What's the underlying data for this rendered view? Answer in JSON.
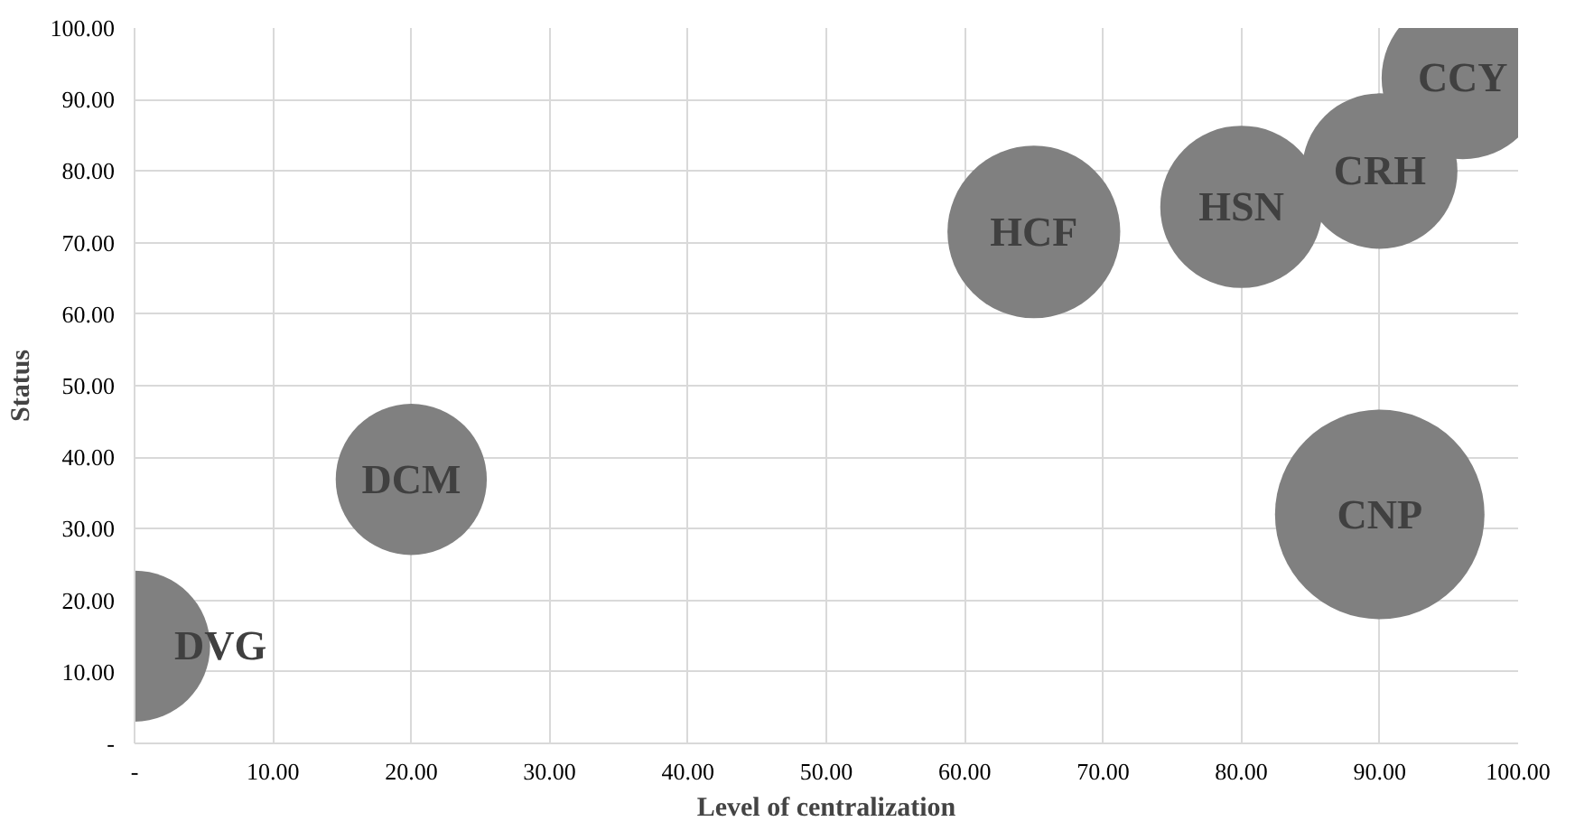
{
  "chart_data": {
    "type": "bubble",
    "xlabel": "Level of centralization",
    "ylabel": "Status",
    "series": [
      {
        "color": "#808080",
        "x": [
          0,
          20,
          65,
          80,
          90,
          96,
          90
        ],
        "values": [
          13.6,
          36.9,
          71.5,
          75,
          80,
          93,
          32
        ],
        "sizes": [
          0.52,
          0.52,
          0.68,
          0.6,
          0.55,
          0.6,
          1
        ]
      }
    ],
    "annotations": [
      {
        "text": "DVG",
        "x": 0,
        "y": 13.6
      },
      {
        "text": "DCM",
        "x": 20,
        "y": 36.9
      },
      {
        "text": "HCF",
        "x": 65,
        "y": 71.5
      },
      {
        "text": "HSN",
        "x": 80,
        "y": 75
      },
      {
        "text": "CRH",
        "x": 90,
        "y": 80
      },
      {
        "text": "CCY",
        "x": 96,
        "y": 93
      },
      {
        "text": "CNP",
        "x": 90,
        "y": 32
      }
    ],
    "xlim": [
      0,
      100
    ],
    "ylim": [
      0,
      100
    ],
    "xticks": [
      {
        "value": 0,
        "label": "-"
      },
      {
        "value": 10,
        "label": "10.00"
      },
      {
        "value": 20,
        "label": "20.00"
      },
      {
        "value": 30,
        "label": "30.00"
      },
      {
        "value": 40,
        "label": "40.00"
      },
      {
        "value": 50,
        "label": "50.00"
      },
      {
        "value": 60,
        "label": "60.00"
      },
      {
        "value": 70,
        "label": "70.00"
      },
      {
        "value": 80,
        "label": "80.00"
      },
      {
        "value": 90,
        "label": "90.00"
      },
      {
        "value": 100,
        "label": "100.00"
      }
    ],
    "yticks": [
      {
        "value": 0,
        "label": "-"
      },
      {
        "value": 10,
        "label": "10.00"
      },
      {
        "value": 20,
        "label": "20.00"
      },
      {
        "value": 30,
        "label": "30.00"
      },
      {
        "value": 40,
        "label": "40.00"
      },
      {
        "value": 50,
        "label": "50.00"
      },
      {
        "value": 60,
        "label": "60.00"
      },
      {
        "value": 70,
        "label": "70.00"
      },
      {
        "value": 80,
        "label": "80.00"
      },
      {
        "value": 90,
        "label": "90.00"
      },
      {
        "value": 100,
        "label": "100.00"
      }
    ],
    "grid": true
  }
}
